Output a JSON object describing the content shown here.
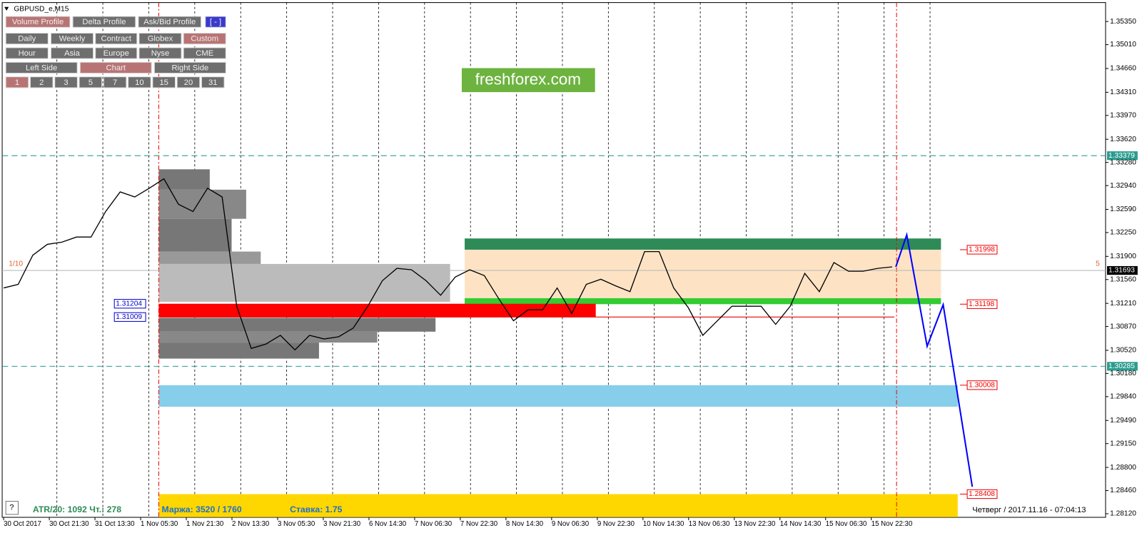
{
  "window": {
    "title": "GBPUSD_e,M15"
  },
  "toolbar": {
    "rows": [
      [
        {
          "label": "Volume Profile",
          "active": true
        },
        {
          "label": "Delta Profile",
          "active": false
        },
        {
          "label": "Ask/Bid Profile",
          "active": false
        },
        {
          "label": "[ - ]",
          "active": false
        }
      ],
      [
        {
          "label": "Daily",
          "active": false
        },
        {
          "label": "Weekly",
          "active": false
        },
        {
          "label": "Contract",
          "active": false
        },
        {
          "label": "Globex",
          "active": false
        },
        {
          "label": "Custom",
          "active": true
        }
      ],
      [
        {
          "label": "Hour",
          "active": false
        },
        {
          "label": "Asia",
          "active": false
        },
        {
          "label": "Europe",
          "active": false
        },
        {
          "label": "Nyse",
          "active": false
        },
        {
          "label": "CME",
          "active": false
        }
      ],
      [
        {
          "label": "Left Side",
          "active": false
        },
        {
          "label": "Chart",
          "active": true
        },
        {
          "label": "Right Side",
          "active": false
        }
      ],
      [
        {
          "label": "1",
          "active": true
        },
        {
          "label": "2",
          "active": false
        },
        {
          "label": "3",
          "active": false
        },
        {
          "label": "5",
          "active": false
        },
        {
          "label": "7",
          "active": false
        },
        {
          "label": "10",
          "active": false
        },
        {
          "label": "15",
          "active": false
        },
        {
          "label": "20",
          "active": false
        },
        {
          "label": "31",
          "active": false
        }
      ]
    ]
  },
  "banner": "freshforex.com",
  "chart": {
    "ylim": [
      1.28067,
      1.35628
    ],
    "yticks": [
      {
        "value": 1.3535,
        "label": "1.35350"
      },
      {
        "value": 1.3501,
        "label": "1.35010"
      },
      {
        "value": 1.3466,
        "label": "1.34660"
      },
      {
        "value": 1.3431,
        "label": "1.34310"
      },
      {
        "value": 1.3397,
        "label": "1.33970"
      },
      {
        "value": 1.3362,
        "label": "1.33620"
      },
      {
        "value": 1.3328,
        "label": "1.33280"
      },
      {
        "value": 1.3294,
        "label": "1.32940"
      },
      {
        "value": 1.3259,
        "label": "1.32590"
      },
      {
        "value": 1.3225,
        "label": "1.32250"
      },
      {
        "value": 1.319,
        "label": "1.31900"
      },
      {
        "value": 1.3156,
        "label": "1.31560"
      },
      {
        "value": 1.3121,
        "label": "1.31210"
      },
      {
        "value": 1.3087,
        "label": "1.30870"
      },
      {
        "value": 1.3052,
        "label": "1.30520"
      },
      {
        "value": 1.3018,
        "label": "1.30180"
      },
      {
        "value": 1.2984,
        "label": "1.29840"
      },
      {
        "value": 1.2949,
        "label": "1.29490"
      },
      {
        "value": 1.2915,
        "label": "1.29150"
      },
      {
        "value": 1.288,
        "label": "1.28800"
      },
      {
        "value": 1.2846,
        "label": "1.28460"
      },
      {
        "value": 1.2812,
        "label": "1.28120"
      }
    ],
    "time_labels": [
      "30 Oct 2017",
      "30 Oct 21:30",
      "31 Oct 13:30",
      "1 Nov 05:30",
      "1 Nov 21:30",
      "2 Nov 13:30",
      "3 Nov 05:30",
      "3 Nov 21:30",
      "6 Nov 14:30",
      "7 Nov 06:30",
      "7 Nov 22:30",
      "8 Nov 14:30",
      "9 Nov 06:30",
      "9 Nov 22:30",
      "10 Nov 14:30",
      "13 Nov 06:30",
      "13 Nov 22:30",
      "14 Nov 14:30",
      "15 Nov 06:30",
      "15 Nov 22:30"
    ],
    "price": [
      1.31436,
      1.31489,
      1.31917,
      1.32077,
      1.32109,
      1.32184,
      1.32184,
      1.32559,
      1.32847,
      1.32773,
      1.32901,
      1.3304,
      1.32666,
      1.32559,
      1.32901,
      1.32773,
      1.31168,
      1.30548,
      1.30612,
      1.3074,
      1.30527,
      1.3074,
      1.30687,
      1.30719,
      1.30847,
      1.31168,
      1.31543,
      1.31724,
      1.31703,
      1.31543,
      1.31329,
      1.31596,
      1.31703,
      1.31617,
      1.31275,
      1.30954,
      1.31115,
      1.31115,
      1.31436,
      1.31061,
      1.31489,
      1.31564,
      1.31468,
      1.31382,
      1.3197,
      1.3197,
      1.31436,
      1.31147,
      1.3074,
      1.30954,
      1.31168,
      1.31168,
      1.31168,
      1.30901,
      1.31168,
      1.3165,
      1.31382,
      1.3181,
      1.31682,
      1.31682,
      1.31724,
      1.31746
    ],
    "price_color": "#000000",
    "forecast": [
      1.31746,
      1.32216,
      1.3058,
      1.3119,
      1.28516
    ],
    "forecast_color": "#0000ff",
    "zones": [
      {
        "top": 1.32163,
        "bottom": 1.31998,
        "color": "#2e8b57"
      },
      {
        "top": 1.31998,
        "bottom": 1.31286,
        "color": "#fde3c4"
      },
      {
        "top": 1.31286,
        "bottom": 1.31198,
        "color": "#33cc33"
      },
      {
        "top": 1.30008,
        "bottom": 1.29692,
        "color": "#87ceeb"
      },
      {
        "top": 1.28408,
        "bottom": 1.2807,
        "color": "#ffd700"
      }
    ],
    "levels_dashed": [
      1.33379,
      1.30285
    ],
    "level_dashed_color": "#2a9d8f",
    "current_price": 1.31693,
    "red_labels": [
      1.31998,
      1.31198,
      1.30008,
      1.28408
    ],
    "poc_labels": [
      1.31204,
      1.31009
    ],
    "left_note": "1/10",
    "right_note": "5"
  },
  "status": {
    "help": "?",
    "atr": "ATR/20: 1092  Чт.: 278",
    "margin": "Маржа: 3520 / 1760",
    "rate": "Ставка: 1.75",
    "clock": "Четверг / 2017.11.16 - 07:04:13"
  }
}
